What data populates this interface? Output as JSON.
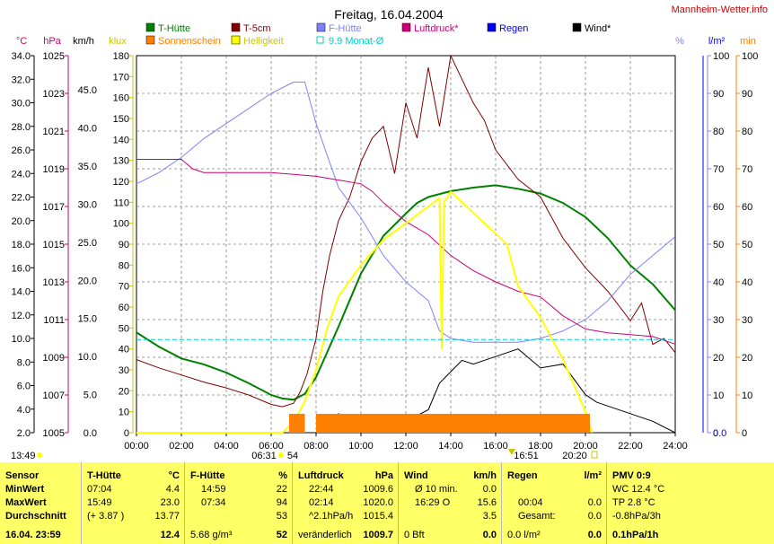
{
  "header": {
    "title": "Freitag, 16.04.2004",
    "site": "Mannheim-Wetter.info"
  },
  "legend": [
    {
      "label": "T-Hütte",
      "color": "#008000"
    },
    {
      "label": "T-5cm",
      "color": "#800000"
    },
    {
      "label": "F-Hütte",
      "color": "#8080ff"
    },
    {
      "label": "Luftdruck*",
      "color": "#cc0077"
    },
    {
      "label": "Regen",
      "color": "#0000ff"
    },
    {
      "label": "Wind*",
      "color": "#000000"
    },
    {
      "label": "Sonnenschein",
      "color": "#ff8000"
    },
    {
      "label": "Helligkeit",
      "color": "#ffff00"
    },
    {
      "label": "9.9 Monat-Ø",
      "color": "#00cccc"
    }
  ],
  "axes_units": {
    "temp": "°C",
    "hpa": "hPa",
    "kmh": "km/h",
    "klux": "klux",
    "pct": "%",
    "lm2": "l/m²",
    "min": "min"
  },
  "annotations": {
    "bottom_left_time": "13:49",
    "sunrise": "06:31",
    "klux_max": "54",
    "max_bright_time": "16:51",
    "sunset": "20:20"
  },
  "chart_data": {
    "type": "line",
    "title": "Freitag, 16.04.2004",
    "x_ticks": [
      "00:00",
      "02:00",
      "04:00",
      "06:00",
      "08:00",
      "10:00",
      "12:00",
      "14:00",
      "16:00",
      "18:00",
      "20:00",
      "22:00",
      "24:00"
    ],
    "xlim": [
      0,
      24
    ],
    "y_axes": {
      "temp_c": {
        "ticks": [
          "34.0",
          "32.0",
          "30.0",
          "28.0",
          "26.0",
          "24.0",
          "22.0",
          "20.0",
          "18.0",
          "16.0",
          "14.0",
          "12.0",
          "10.0",
          "8.0",
          "6.0",
          "4.0",
          "2.0"
        ],
        "lim": [
          2,
          34
        ]
      },
      "pressure_hpa": {
        "ticks": [
          "1025",
          "1023",
          "1021",
          "1019",
          "1017",
          "1015",
          "1013",
          "1011",
          "1009",
          "1007",
          "1005"
        ],
        "lim": [
          1005,
          1025
        ]
      },
      "wind_kmh": {
        "ticks": [
          "45.0",
          "40.0",
          "35.0",
          "30.0",
          "25.0",
          "20.0",
          "15.0",
          "10.0",
          "5.0",
          "0.0"
        ],
        "lim": [
          0,
          49.5
        ]
      },
      "klux": {
        "ticks": [
          "180",
          "170",
          "160",
          "150",
          "140",
          "130",
          "120",
          "110",
          "100",
          "90",
          "80",
          "70",
          "60",
          "50",
          "40",
          "30",
          "20",
          "10",
          "0"
        ],
        "lim": [
          0,
          180
        ]
      },
      "humidity_pct": {
        "ticks": [
          "100",
          "90",
          "80",
          "70",
          "60",
          "50",
          "40",
          "30",
          "20",
          "10",
          "0"
        ],
        "lim": [
          0,
          100
        ]
      },
      "rain_lm2": {
        "ticks": [
          "0.0"
        ],
        "lim": [
          0,
          1
        ]
      },
      "sun_min": {
        "ticks": [
          "100",
          "90",
          "80",
          "70",
          "60",
          "50",
          "40",
          "30",
          "20",
          "10",
          "0"
        ],
        "lim": [
          0,
          100
        ]
      }
    },
    "series": [
      {
        "name": "T-Hütte",
        "axis": "temp_c",
        "x": [
          0,
          1,
          2,
          3,
          4,
          5,
          6,
          6.5,
          7,
          7.5,
          8,
          9,
          10,
          11,
          12,
          12.5,
          13,
          14,
          15,
          16,
          17,
          18,
          19,
          20,
          21,
          22,
          23,
          24
        ],
        "y": [
          10.5,
          9.3,
          8.3,
          7.8,
          7.1,
          6.2,
          5.2,
          4.9,
          4.8,
          5.3,
          6.7,
          11,
          15.5,
          18.7,
          20.6,
          21.5,
          22,
          22.5,
          22.8,
          23,
          22.7,
          22.3,
          21.5,
          20.3,
          18.5,
          16.2,
          14.6,
          12.4
        ]
      },
      {
        "name": "T-5cm",
        "axis": "temp_c",
        "x": [
          0,
          1,
          2,
          3,
          4,
          5,
          6,
          6.5,
          7,
          7.3,
          7.6,
          8,
          8.3,
          8.6,
          9,
          9.5,
          10,
          10.5,
          11,
          11.5,
          12,
          12.5,
          13,
          13.5,
          14,
          14.5,
          15,
          15.5,
          16,
          17,
          18,
          19,
          20,
          21,
          22,
          22.5,
          23,
          23.5,
          24
        ],
        "y": [
          8.2,
          7.5,
          6.9,
          6.3,
          5.8,
          5.2,
          4.4,
          4.2,
          4.5,
          5.5,
          7,
          10,
          14,
          17,
          20,
          22,
          25,
          27,
          28,
          24,
          30,
          27,
          33,
          28,
          34,
          32,
          30,
          28.5,
          26,
          23.5,
          22,
          18.5,
          16,
          14,
          11.5,
          13,
          9.5,
          10,
          8.8
        ]
      },
      {
        "name": "F-Hütte",
        "axis": "humidity_pct",
        "x": [
          0,
          1,
          2,
          3,
          4,
          5,
          6,
          7,
          7.5,
          8,
          9,
          10,
          11,
          12,
          13,
          13.5,
          14,
          15,
          16,
          17,
          18,
          19,
          20,
          21,
          22,
          23,
          24
        ],
        "y": [
          66,
          69,
          73,
          78,
          82,
          86,
          90,
          93,
          93,
          82,
          65,
          57,
          47,
          40,
          35,
          27,
          25,
          24,
          24,
          24,
          25,
          27,
          30,
          35,
          42,
          47,
          52
        ]
      },
      {
        "name": "Luftdruck*",
        "axis": "pressure_hpa",
        "x": [
          0,
          1,
          2,
          2.5,
          3,
          4,
          5,
          6,
          7,
          8,
          9,
          10,
          10.5,
          11,
          12,
          13,
          14,
          15,
          16,
          17,
          18,
          19,
          20,
          21,
          22,
          23,
          24
        ],
        "y": [
          1019.5,
          1019.5,
          1019.5,
          1019.0,
          1018.8,
          1018.8,
          1018.8,
          1018.8,
          1018.7,
          1018.6,
          1018.4,
          1018.2,
          1017.8,
          1017.2,
          1016.2,
          1015.5,
          1014.4,
          1013.6,
          1013.0,
          1012.5,
          1012.2,
          1011.2,
          1010.5,
          1010.3,
          1010.2,
          1010.1,
          1009.7
        ]
      },
      {
        "name": "Wind*",
        "axis": "wind_kmh",
        "x": [
          0,
          1,
          2,
          3,
          4,
          5,
          6,
          7,
          7.5,
          8,
          9,
          10,
          11,
          12,
          13,
          13.5,
          14,
          14.5,
          15,
          16,
          17,
          18,
          19,
          20,
          20.5,
          21,
          22,
          23,
          24
        ],
        "y": [
          0,
          0,
          0,
          0,
          0,
          0,
          0,
          0,
          0,
          0,
          2.5,
          1,
          2,
          1.5,
          3,
          6.5,
          8,
          9.5,
          9,
          10,
          11,
          8.5,
          9,
          5,
          4,
          3.5,
          2.5,
          1.5,
          0
        ]
      },
      {
        "name": "Helligkeit",
        "axis": "klux",
        "x": [
          0,
          5,
          6,
          6.5,
          7,
          7.5,
          8,
          8.5,
          9,
          10,
          11,
          12,
          13,
          13.5,
          13.6,
          13.7,
          14,
          15,
          16,
          16.5,
          17,
          18,
          19,
          20,
          20.3
        ],
        "y": [
          0,
          0,
          0,
          0,
          5,
          15,
          30,
          50,
          65,
          80,
          92,
          100,
          108,
          112,
          40,
          110,
          115,
          105,
          95,
          90,
          70,
          55,
          35,
          10,
          0
        ]
      },
      {
        "name": "Sonnenschein",
        "axis": "sun_min",
        "x": [
          6.8,
          7.5,
          8,
          9,
          10,
          11,
          12,
          13,
          14,
          15,
          16,
          17,
          18,
          19,
          20,
          20.2
        ],
        "y": [
          5,
          0,
          5,
          5,
          5,
          5,
          5,
          5,
          5,
          5,
          5,
          5,
          5,
          5,
          5,
          0
        ]
      },
      {
        "name": "9.9 Monat-Ø",
        "axis": "temp_c",
        "x": [
          0,
          24
        ],
        "y": [
          9.9,
          9.9
        ]
      }
    ]
  },
  "table": {
    "columns": [
      {
        "head": "Sensor",
        "unit": "",
        "rows": [
          "MinWert",
          "MaxWert",
          "Durchschnitt"
        ],
        "foot": "16.04.  23:59"
      },
      {
        "head": "T-Hütte",
        "unit": "°C",
        "rows": [
          [
            "07:04",
            "4.4"
          ],
          [
            "15:49",
            "23.0"
          ],
          [
            "(+ 3.87 )",
            "13.77"
          ]
        ],
        "foot": "12.4"
      },
      {
        "head": "F-Hütte",
        "unit": "%",
        "rows": [
          [
            "14:59",
            "22"
          ],
          [
            "07:34",
            "94"
          ],
          [
            "",
            "53"
          ]
        ],
        "foot_left": "5.68 g/m³",
        "foot": "52"
      },
      {
        "head": "Luftdruck",
        "unit": "hPa",
        "rows": [
          [
            "22:44",
            "1009.6"
          ],
          [
            "02:14",
            "1020.0"
          ],
          [
            "^2.1hPa/h",
            "1015.4"
          ]
        ],
        "foot_left": "veränderlich",
        "foot": "1009.7"
      },
      {
        "head": "Wind",
        "unit": "km/h",
        "rows": [
          [
            "Ø 10 min.",
            "0.0"
          ],
          [
            "16:29   O",
            "15.6"
          ],
          [
            "",
            "3.5"
          ]
        ],
        "foot_left": "0 Bft",
        "foot": "0.0"
      },
      {
        "head": "Regen",
        "unit": "l/m²",
        "rows": [
          [
            "",
            ""
          ],
          [
            "00:04",
            "0.0"
          ],
          [
            "Gesamt:",
            "0.0"
          ]
        ],
        "foot_left": "0.0 l/m²",
        "foot": "0.0"
      },
      {
        "head": "PMV 0:9",
        "unit": "",
        "rows": [
          "WC 12.4 °C",
          "TP 2.8 °C",
          "-0.8hPa/3h"
        ],
        "foot": "0.1hPa/1h"
      }
    ]
  }
}
